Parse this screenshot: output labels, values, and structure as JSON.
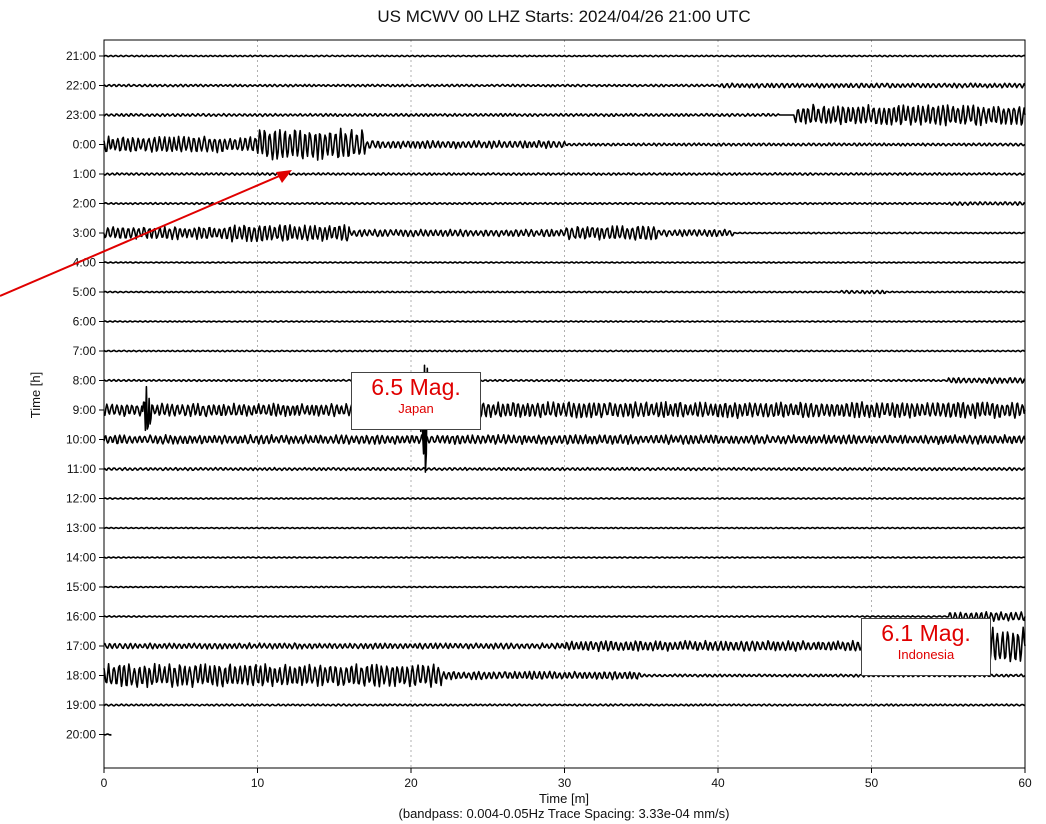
{
  "chart_data": {
    "type": "line",
    "title": "US MCWV 00 LHZ  Starts: 2024/04/26 21:00 UTC",
    "xlabel": "Time [m]",
    "xlabel_note": "(bandpass: 0.004-0.05Hz  Trace Spacing: 3.33e-04 mm/s)",
    "ylabel": "Time [h]",
    "xlim": [
      0,
      60
    ],
    "x_ticks": [
      0,
      10,
      20,
      30,
      40,
      50,
      60
    ],
    "y_tick_labels": [
      "21:00",
      "22:00",
      "23:00",
      "0:00",
      "1:00",
      "2:00",
      "3:00",
      "4:00",
      "5:00",
      "6:00",
      "7:00",
      "8:00",
      "9:00",
      "10:00",
      "11:00",
      "12:00",
      "13:00",
      "14:00",
      "15:00",
      "16:00",
      "17:00",
      "18:00",
      "19:00",
      "20:00"
    ],
    "grid": "vertical dotted",
    "trace_color": "#000000",
    "trace_activity": [
      {
        "hour": "21:00",
        "bursts": [
          [
            0,
            60,
            0.06
          ]
        ]
      },
      {
        "hour": "22:00",
        "bursts": [
          [
            0,
            60,
            0.1
          ],
          [
            40,
            60,
            0.2
          ]
        ]
      },
      {
        "hour": "23:00",
        "bursts": [
          [
            0,
            44,
            0.12
          ],
          [
            45,
            60,
            0.9
          ]
        ]
      },
      {
        "hour": "0:00",
        "bursts": [
          [
            0,
            10,
            0.7
          ],
          [
            10,
            17,
            1.4
          ],
          [
            17,
            30,
            0.35
          ],
          [
            30,
            60,
            0.12
          ]
        ]
      },
      {
        "hour": "1:00",
        "bursts": [
          [
            0,
            60,
            0.1
          ]
        ]
      },
      {
        "hour": "2:00",
        "bursts": [
          [
            0,
            60,
            0.08
          ],
          [
            55,
            60,
            0.15
          ]
        ]
      },
      {
        "hour": "3:00",
        "bursts": [
          [
            0,
            8,
            0.55
          ],
          [
            8,
            16,
            0.75
          ],
          [
            16,
            30,
            0.3
          ],
          [
            30,
            36,
            0.6
          ],
          [
            36,
            41,
            0.3
          ],
          [
            41,
            60,
            0.06
          ]
        ]
      },
      {
        "hour": "4:00",
        "bursts": [
          [
            0,
            60,
            0.05
          ]
        ]
      },
      {
        "hour": "5:00",
        "bursts": [
          [
            0,
            60,
            0.06
          ],
          [
            48,
            51,
            0.15
          ]
        ]
      },
      {
        "hour": "6:00",
        "bursts": [
          [
            0,
            60,
            0.05
          ]
        ]
      },
      {
        "hour": "7:00",
        "bursts": [
          [
            0,
            60,
            0.06
          ]
        ]
      },
      {
        "hour": "8:00",
        "bursts": [
          [
            0,
            55,
            0.08
          ],
          [
            55,
            60,
            0.25
          ]
        ]
      },
      {
        "hour": "9:00",
        "bursts": [
          [
            0,
            20,
            0.55
          ],
          [
            20,
            22,
            1.2
          ],
          [
            22,
            60,
            0.7
          ]
        ]
      },
      {
        "hour": "10:00",
        "bursts": [
          [
            0,
            60,
            0.4
          ]
        ]
      },
      {
        "hour": "11:00",
        "bursts": [
          [
            0,
            60,
            0.12
          ]
        ]
      },
      {
        "hour": "12:00",
        "bursts": [
          [
            0,
            60,
            0.06
          ]
        ]
      },
      {
        "hour": "13:00",
        "bursts": [
          [
            0,
            60,
            0.05
          ]
        ]
      },
      {
        "hour": "14:00",
        "bursts": [
          [
            0,
            60,
            0.05
          ]
        ]
      },
      {
        "hour": "15:00",
        "bursts": [
          [
            0,
            60,
            0.05
          ]
        ]
      },
      {
        "hour": "16:00",
        "bursts": [
          [
            0,
            55,
            0.06
          ],
          [
            55,
            60,
            0.4
          ]
        ]
      },
      {
        "hour": "17:00",
        "bursts": [
          [
            0,
            30,
            0.25
          ],
          [
            30,
            55,
            0.45
          ],
          [
            55,
            60,
            1.6
          ]
        ]
      },
      {
        "hour": "18:00",
        "bursts": [
          [
            0,
            22,
            1.0
          ],
          [
            22,
            35,
            0.35
          ],
          [
            35,
            60,
            0.12
          ]
        ]
      },
      {
        "hour": "19:00",
        "bursts": [
          [
            0,
            60,
            0.08
          ]
        ]
      },
      {
        "hour": "20:00",
        "bursts": [
          [
            0,
            0.5,
            0.05
          ]
        ]
      }
    ],
    "spikes": [
      {
        "hour": "9:00",
        "x": 20.9,
        "up": 4.5,
        "down": 5.0
      },
      {
        "hour": "9:00",
        "x": 2.8,
        "up": 2.0,
        "down": 2.0
      }
    ],
    "annotations": [
      {
        "magnitude": "6.5 Mag.",
        "region": "Japan",
        "x": 20.6,
        "hour": "8:00"
      },
      {
        "magnitude": "6.1 Mag.",
        "region": "Indonesia",
        "x": 56.5,
        "hour": "17:00"
      }
    ],
    "arrow": {
      "color": "#e00000",
      "to_x": 12,
      "to_hour": "1:00"
    }
  },
  "annot1": {
    "magnitude": "6.5 Mag.",
    "region": "Japan"
  },
  "annot2": {
    "magnitude": "6.1 Mag.",
    "region": "Indonesia"
  }
}
